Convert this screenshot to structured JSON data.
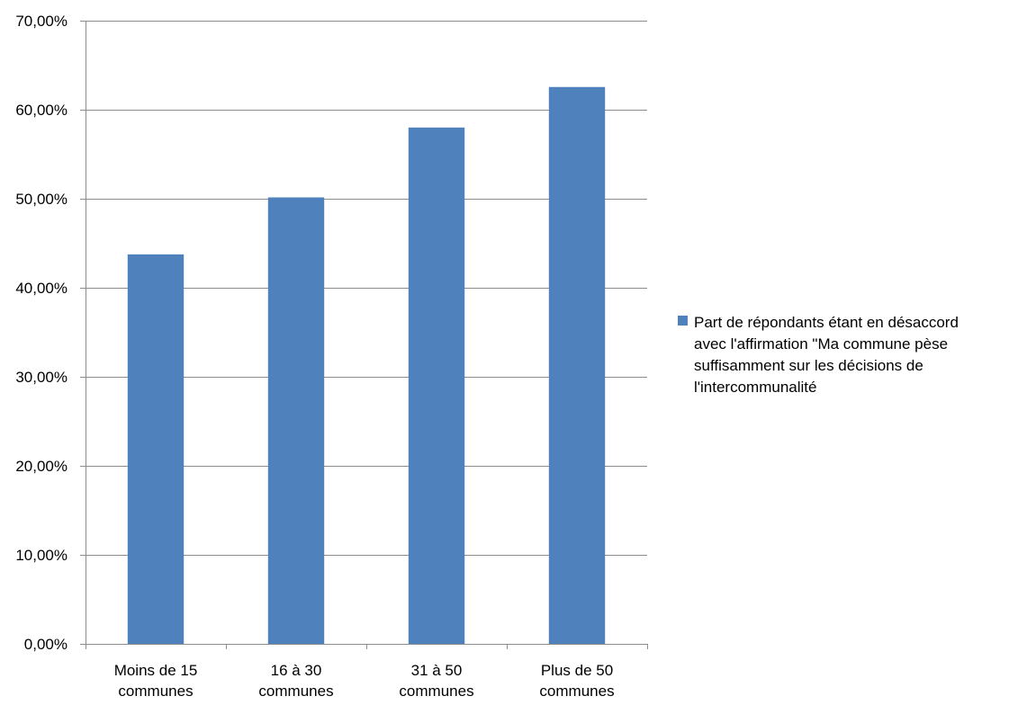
{
  "chart_data": {
    "type": "bar",
    "categories": [
      [
        "Moins de 15",
        "communes"
      ],
      [
        "16 à 30",
        "communes"
      ],
      [
        "31 à 50",
        "communes"
      ],
      [
        "Plus de 50",
        "communes"
      ]
    ],
    "series": [
      {
        "name": "Part de répondants étant en désaccord avec l'affirmation \"Ma commune pèse suffisamment sur les décisions de l'intercommunalité",
        "name_lines": [
          "Part de répondants étant en désaccord",
          "avec l'affirmation \"Ma commune pèse",
          "suffisamment sur les décisions de",
          "l'intercommunalité"
        ],
        "values": [
          0.4375,
          0.5015,
          0.58,
          0.6255
        ],
        "color": "#4f81bd"
      }
    ],
    "ylim": [
      0,
      0.7
    ],
    "yticks": [
      0,
      0.1,
      0.2,
      0.3,
      0.4,
      0.5,
      0.6,
      0.7
    ],
    "ytick_labels": [
      "0,00%",
      "10,00%",
      "20,00%",
      "30,00%",
      "40,00%",
      "50,00%",
      "60,00%",
      "70,00%"
    ],
    "grid": true,
    "grid_color": "#8c8c8c",
    "legend_position": "right",
    "title": "",
    "xlabel": "",
    "ylabel": ""
  }
}
